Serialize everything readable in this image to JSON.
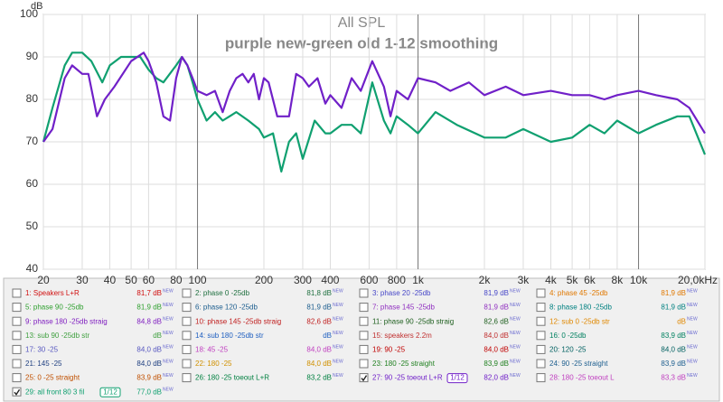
{
  "chart_data": {
    "type": "line",
    "title": "All SPL",
    "subtitle": "purple new-green old 1-12 smoothing",
    "y_label": "dB",
    "x_scale": "log",
    "grid": true,
    "xlim": [
      20,
      20000
    ],
    "ylim": [
      40,
      100
    ],
    "yticks": [
      40,
      50,
      60,
      70,
      80,
      90,
      100
    ],
    "xticks": [
      20,
      30,
      40,
      50,
      60,
      80,
      100,
      200,
      300,
      400,
      600,
      800,
      {
        "value": 1000,
        "label": "1k"
      },
      {
        "value": 2000,
        "label": "2k"
      },
      {
        "value": 3000,
        "label": "3k"
      },
      {
        "value": 4000,
        "label": "4k"
      },
      {
        "value": 5000,
        "label": "5k"
      },
      {
        "value": 6000,
        "label": "6k"
      },
      {
        "value": 8000,
        "label": "8k"
      },
      {
        "value": 10000,
        "label": "10k"
      },
      {
        "value": 20000,
        "label": "20,0kHz"
      }
    ],
    "series": [
      {
        "color": "#7020c8",
        "x": [
          20,
          22,
          25,
          27,
          30,
          32,
          35,
          38,
          42,
          50,
          57,
          60,
          65,
          70,
          75,
          80,
          85,
          90,
          95,
          100,
          110,
          120,
          130,
          140,
          150,
          160,
          170,
          180,
          190,
          200,
          210,
          230,
          260,
          280,
          300,
          320,
          350,
          380,
          400,
          450,
          500,
          550,
          620,
          700,
          750,
          800,
          900,
          1000,
          1200,
          1400,
          1700,
          2000,
          2500,
          3000,
          4000,
          5000,
          6000,
          7000,
          8000,
          10000,
          12000,
          15000,
          17000,
          20000
        ],
        "values": [
          70,
          73,
          85,
          88,
          86,
          86,
          76,
          80,
          83,
          89,
          91,
          89,
          84,
          76,
          75,
          85,
          90,
          88,
          85,
          82,
          81,
          82,
          77,
          82,
          85,
          86,
          84,
          86,
          80,
          85,
          84,
          76,
          76,
          86,
          85,
          83,
          85,
          79,
          81,
          78,
          85,
          82,
          89,
          83,
          76,
          82,
          80,
          85,
          84,
          82,
          84,
          81,
          83,
          81,
          82,
          81,
          81,
          80,
          81,
          82,
          81,
          80,
          78,
          72
        ]
      },
      {
        "color": "#10a070",
        "x": [
          20,
          22,
          25,
          27,
          30,
          33,
          37,
          40,
          45,
          50,
          55,
          60,
          65,
          70,
          80,
          85,
          90,
          95,
          100,
          110,
          120,
          130,
          150,
          170,
          190,
          200,
          220,
          240,
          260,
          280,
          300,
          340,
          380,
          400,
          450,
          500,
          550,
          620,
          700,
          750,
          800,
          900,
          1000,
          1200,
          1500,
          2000,
          2500,
          3000,
          4000,
          5000,
          6000,
          7000,
          8000,
          10000,
          12000,
          15000,
          17000,
          20000
        ],
        "values": [
          70,
          78,
          88,
          91,
          91,
          89,
          84,
          88,
          90,
          90,
          90,
          87,
          85,
          84,
          88,
          90,
          88,
          84,
          80,
          75,
          77,
          75,
          77,
          75,
          73,
          71,
          72,
          63,
          70,
          72,
          66,
          75,
          72,
          72,
          74,
          74,
          72,
          84,
          75,
          72,
          76,
          74,
          72,
          77,
          74,
          71,
          71,
          73,
          70,
          71,
          74,
          72,
          75,
          72,
          74,
          76,
          76,
          67
        ]
      }
    ]
  },
  "legend": {
    "new_tag": "NEW",
    "smoothing": "1/12",
    "entries": [
      {
        "name": "1: Speakers L+R",
        "level": "81,7 dB",
        "color": "#d01010",
        "checked": false
      },
      {
        "name": "2: phase 0 -25db",
        "level": "81,8 dB",
        "color": "#207040",
        "checked": false
      },
      {
        "name": "3: phase 20 -25db",
        "level": "81,9 dB",
        "color": "#4848c8",
        "checked": false
      },
      {
        "name": "4: phase 45 -25db",
        "level": "81,9 dB",
        "color": "#e07800",
        "checked": false
      },
      {
        "name": "5: phase 90 -25db",
        "level": "81,9 dB",
        "color": "#30a030",
        "checked": false
      },
      {
        "name": "6: phase 120 -25db",
        "level": "81,9 dB",
        "color": "#206090",
        "checked": false
      },
      {
        "name": "7: phase 145 -25db",
        "level": "81,9 dB",
        "color": "#9030c0",
        "checked": false
      },
      {
        "name": "8: phase 180 -25db",
        "level": "81,9 dB",
        "color": "#008080",
        "checked": false
      },
      {
        "name": "9: phase 180 -25db straig",
        "level": "84,8 dB",
        "color": "#8020c0",
        "checked": false
      },
      {
        "name": "10: phase 145 -25db straig",
        "level": "82,6 dB",
        "color": "#c02020",
        "checked": false
      },
      {
        "name": "11: phase 90 -25db straig",
        "level": "82,6 dB",
        "color": "#206020",
        "checked": false
      },
      {
        "name": "12: sub 0 -25db str",
        "level": "dB",
        "color": "#e08800",
        "checked": false
      },
      {
        "name": "13: sub 90 -25db str",
        "level": "dB",
        "color": "#40a040",
        "checked": false
      },
      {
        "name": "14: sub 180 -25db str",
        "level": "dB",
        "color": "#2060c0",
        "checked": false
      },
      {
        "name": "15: speakers 2.2m",
        "level": "84,0 dB",
        "color": "#c03030",
        "checked": false
      },
      {
        "name": "16: 0 -25db",
        "level": "83,9 dB",
        "color": "#008060",
        "checked": false
      },
      {
        "name": "17: 30 -25",
        "level": "84,0 dB",
        "color": "#5858c0",
        "checked": false
      },
      {
        "name": "18: 45 -25",
        "level": "84,0 dB",
        "color": "#c040c0",
        "checked": false
      },
      {
        "name": "19: 90 -25",
        "level": "84,0 dB",
        "color": "#c00000",
        "checked": false
      },
      {
        "name": "20: 120 -25",
        "level": "84,0 dB",
        "color": "#006060",
        "checked": false
      },
      {
        "name": "21: 145 -25",
        "level": "84,0 dB",
        "color": "#204080",
        "checked": false
      },
      {
        "name": "22: 180 -25",
        "level": "84,0 dB",
        "color": "#d09000",
        "checked": false
      },
      {
        "name": "23: 180 -25 straight",
        "level": "83,9 dB",
        "color": "#208020",
        "checked": false
      },
      {
        "name": "24: 90 -25 straight",
        "level": "83,9 dB",
        "color": "#206090",
        "checked": false
      },
      {
        "name": "25: 0 -25 straight",
        "level": "83,9 dB",
        "color": "#c05000",
        "checked": false
      },
      {
        "name": "26: 180 -25 toeout L+R",
        "level": "83,2 dB",
        "color": "#008040",
        "checked": false
      },
      {
        "name": "27: 90 -25 toeout L+R",
        "level": "82,0 dB",
        "color": "#7020c8",
        "checked": true,
        "smoothed": true
      },
      {
        "name": "28: 180 -25 toeout L",
        "level": "83,3 dB",
        "color": "#c040c0",
        "checked": false
      },
      {
        "name": "29: all front 80 3 fil",
        "level": "77,0 dB",
        "color": "#10a070",
        "checked": true,
        "smoothed": true
      }
    ]
  }
}
